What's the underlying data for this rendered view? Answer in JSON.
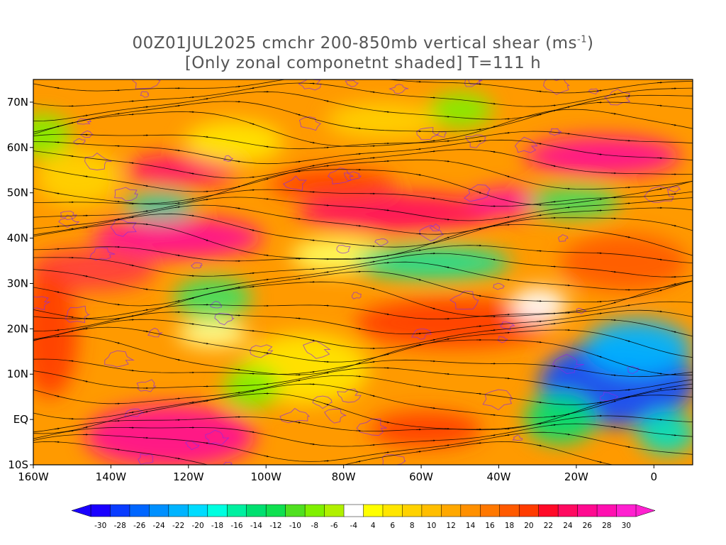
{
  "title": {
    "line1_prefix": "00Z01JUL2025 cmchr 200-850mb vertical shear (ms",
    "line1_sup": "-1",
    "line1_suffix": ")",
    "line2": "[Only zonal componetnt shaded] T=111 h"
  },
  "map": {
    "lon_range": [
      -160,
      10
    ],
    "lat_range": [
      -10,
      75
    ],
    "lat_ticks": [
      {
        "value": 70,
        "label": "70N"
      },
      {
        "value": 60,
        "label": "60N"
      },
      {
        "value": 50,
        "label": "50N"
      },
      {
        "value": 40,
        "label": "40N"
      },
      {
        "value": 30,
        "label": "30N"
      },
      {
        "value": 20,
        "label": "20N"
      },
      {
        "value": 10,
        "label": "10N"
      },
      {
        "value": 0,
        "label": "EQ"
      },
      {
        "value": -10,
        "label": "10S"
      }
    ],
    "lon_ticks": [
      {
        "value": -160,
        "label": "160W"
      },
      {
        "value": -140,
        "label": "140W"
      },
      {
        "value": -120,
        "label": "120W"
      },
      {
        "value": -100,
        "label": "100W"
      },
      {
        "value": -80,
        "label": "80W"
      },
      {
        "value": -60,
        "label": "60W"
      },
      {
        "value": -40,
        "label": "40W"
      },
      {
        "value": -20,
        "label": "20W"
      },
      {
        "value": 0,
        "label": "0"
      }
    ]
  },
  "colorbar": {
    "labels": [
      "-30",
      "-28",
      "-26",
      "-24",
      "-22",
      "-20",
      "-18",
      "-16",
      "-14",
      "-12",
      "-10",
      "-8",
      "-6",
      "-4",
      "4",
      "6",
      "8",
      "10",
      "12",
      "14",
      "16",
      "18",
      "20",
      "22",
      "24",
      "26",
      "28",
      "30"
    ],
    "colors": [
      "#1a00ff",
      "#0a3cff",
      "#0066ff",
      "#0090ff",
      "#00b4ff",
      "#00dcff",
      "#00ffe0",
      "#00f0a0",
      "#00e070",
      "#10e050",
      "#50e020",
      "#80f000",
      "#b0f000",
      "#ffffff",
      "#ffff00",
      "#ffe600",
      "#ffd200",
      "#ffbe00",
      "#ffa800",
      "#ff9000",
      "#ff7800",
      "#ff5a00",
      "#ff3c00",
      "#ff0a28",
      "#ff0a60",
      "#ff0a90",
      "#ff10b0",
      "#ff20d0"
    ]
  }
}
